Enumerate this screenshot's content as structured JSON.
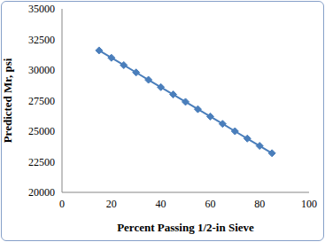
{
  "chart_data": {
    "type": "line",
    "x_label": "Percent Passing 1/2-in Sieve",
    "y_label": "Predicted Mr, psi",
    "x": [
      15,
      20,
      25,
      30,
      35,
      40,
      45,
      50,
      55,
      60,
      65,
      70,
      75,
      80,
      85
    ],
    "values": [
      31600,
      31000,
      30400,
      29800,
      29200,
      28600,
      28000,
      27400,
      26800,
      26200,
      25600,
      25000,
      24400,
      23800,
      23200
    ],
    "color": "#4a7ebb",
    "marker": "diamond",
    "line_style": "solid",
    "xlim": [
      0,
      100
    ],
    "xticks": [
      0,
      20,
      40,
      60,
      80,
      100
    ],
    "ylim": [
      20000,
      35000
    ],
    "yticks": [
      20000,
      22500,
      25000,
      27500,
      30000,
      32500,
      35000
    ],
    "grid": false
  }
}
